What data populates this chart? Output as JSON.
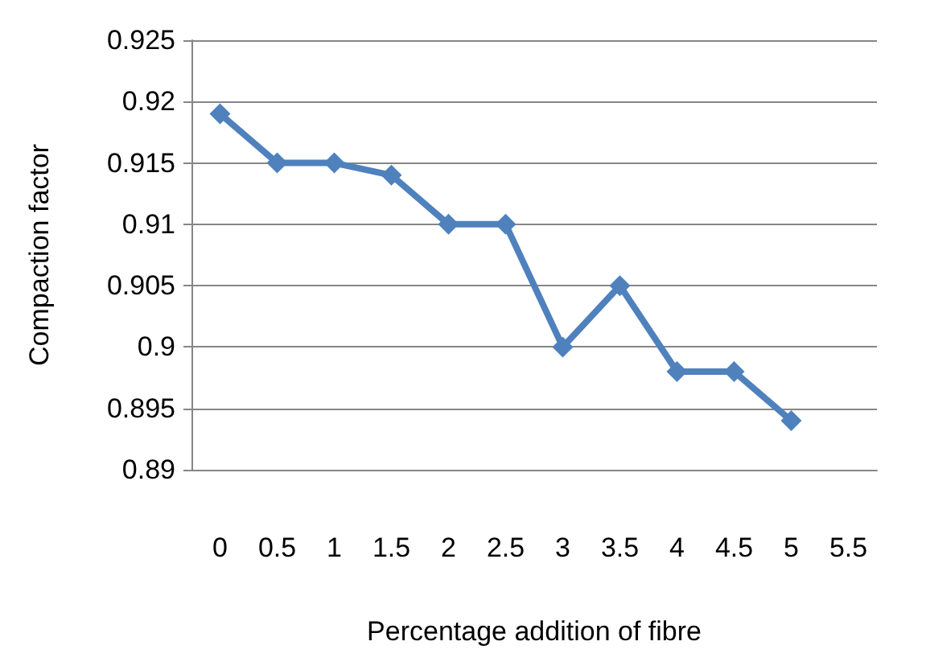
{
  "chart_data": {
    "type": "line",
    "xlabel": "Percentage addition of fibre",
    "ylabel": "Compaction factor",
    "categories": [
      "0",
      "0.5",
      "1",
      "1.5",
      "2",
      "2.5",
      "3",
      "3.5",
      "4",
      "4.5",
      "5",
      "5.5"
    ],
    "series": [
      {
        "color": "#4f81bd",
        "values": [
          0.919,
          0.915,
          0.915,
          0.914,
          0.91,
          0.91,
          0.9,
          0.905,
          0.898,
          0.898,
          0.894,
          null
        ]
      }
    ],
    "ylim": [
      0.89,
      0.925
    ],
    "yticks": [
      0.89,
      0.895,
      0.9,
      0.905,
      0.91,
      0.915,
      0.92,
      0.925
    ],
    "grid": "y",
    "marker": "diamond",
    "line_style": "solid"
  }
}
